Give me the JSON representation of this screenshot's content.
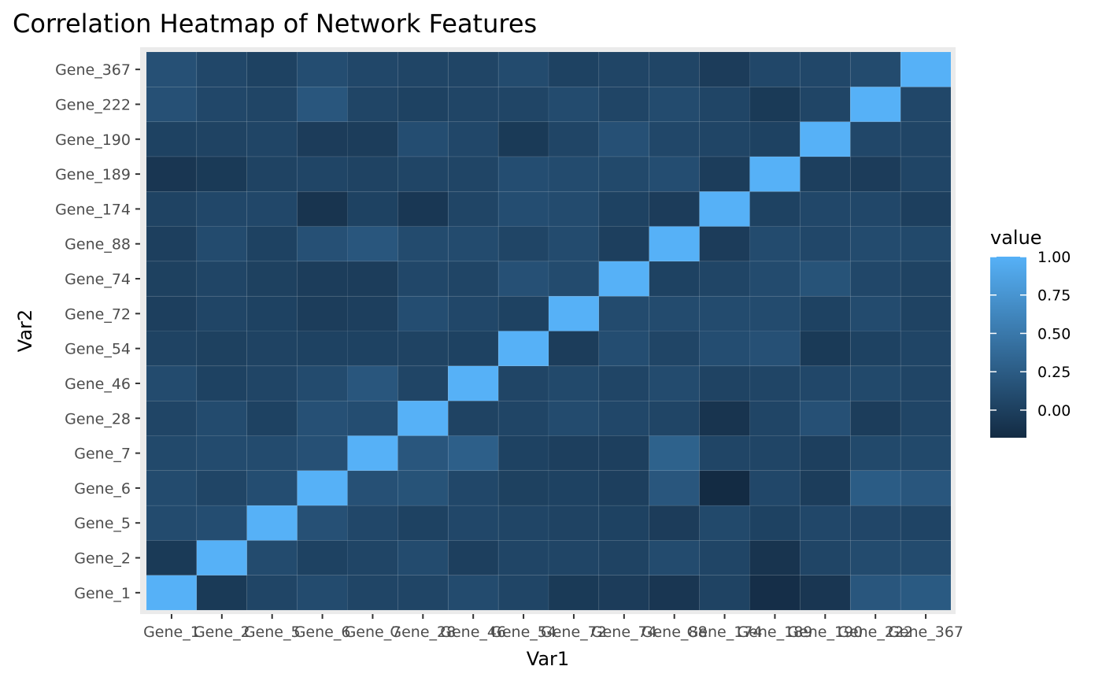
{
  "chart_data": {
    "type": "heatmap",
    "title": "Correlation Heatmap of Network Features",
    "xlabel": "Var1",
    "ylabel": "Var2",
    "x_categories": [
      "Gene_1",
      "Gene_2",
      "Gene_5",
      "Gene_6",
      "Gene_7",
      "Gene_28",
      "Gene_46",
      "Gene_54",
      "Gene_72",
      "Gene_74",
      "Gene_88",
      "Gene_174",
      "Gene_189",
      "Gene_190",
      "Gene_222",
      "Gene_367"
    ],
    "y_categories": [
      "Gene_1",
      "Gene_2",
      "Gene_5",
      "Gene_6",
      "Gene_7",
      "Gene_28",
      "Gene_46",
      "Gene_54",
      "Gene_72",
      "Gene_74",
      "Gene_88",
      "Gene_174",
      "Gene_189",
      "Gene_190",
      "Gene_222",
      "Gene_367"
    ],
    "values": [
      [
        1.0,
        -0.05,
        0.05,
        0.1,
        0.05,
        0.05,
        0.1,
        0.05,
        -0.05,
        -0.03,
        -0.08,
        0.03,
        -0.15,
        -0.08,
        0.2,
        0.23
      ],
      [
        -0.05,
        1.0,
        0.1,
        0.02,
        0.05,
        0.1,
        0.0,
        0.05,
        0.05,
        0.03,
        0.1,
        0.05,
        -0.1,
        0.05,
        0.1,
        0.1
      ],
      [
        0.1,
        0.12,
        1.0,
        0.15,
        0.07,
        0.02,
        0.07,
        0.05,
        0.03,
        0.02,
        -0.03,
        0.08,
        0.02,
        0.07,
        0.06,
        0.04
      ],
      [
        0.1,
        0.05,
        0.12,
        1.0,
        0.15,
        0.17,
        0.07,
        0.01,
        0.02,
        0.0,
        0.2,
        -0.18,
        0.07,
        -0.02,
        0.25,
        0.2
      ],
      [
        0.08,
        0.1,
        0.1,
        0.15,
        1.0,
        0.2,
        0.28,
        0.02,
        0.0,
        0.0,
        0.3,
        0.05,
        0.05,
        0.0,
        0.08,
        0.08
      ],
      [
        0.05,
        0.1,
        0.02,
        0.15,
        0.12,
        1.0,
        0.03,
        0.05,
        0.1,
        0.07,
        0.05,
        -0.1,
        0.05,
        0.15,
        -0.02,
        0.05
      ],
      [
        0.1,
        0.02,
        0.05,
        0.1,
        0.2,
        0.05,
        1.0,
        0.05,
        0.08,
        0.05,
        0.1,
        0.03,
        0.05,
        0.07,
        0.08,
        0.05
      ],
      [
        0.03,
        0.01,
        0.03,
        0.02,
        0.02,
        0.03,
        0.02,
        1.0,
        -0.02,
        0.12,
        0.05,
        0.12,
        0.15,
        -0.05,
        0.02,
        0.05
      ],
      [
        0.0,
        0.05,
        0.02,
        -0.02,
        0.0,
        0.12,
        0.07,
        0.02,
        1.0,
        0.1,
        0.1,
        0.1,
        0.1,
        0.02,
        0.1,
        0.03
      ],
      [
        0.01,
        0.05,
        0.01,
        -0.02,
        -0.02,
        0.07,
        0.05,
        0.15,
        0.1,
        1.0,
        0.02,
        0.05,
        0.1,
        0.17,
        0.07,
        0.03
      ],
      [
        0.0,
        0.1,
        0.02,
        0.15,
        0.2,
        0.1,
        0.1,
        0.05,
        0.1,
        0.0,
        1.0,
        -0.03,
        0.1,
        0.07,
        0.1,
        0.08
      ],
      [
        0.03,
        0.07,
        0.07,
        -0.1,
        0.02,
        -0.07,
        0.05,
        0.12,
        0.1,
        0.02,
        -0.03,
        1.0,
        0.02,
        0.07,
        0.07,
        0.0
      ],
      [
        -0.08,
        -0.05,
        0.03,
        0.05,
        0.03,
        0.05,
        0.05,
        0.12,
        0.1,
        0.08,
        0.12,
        -0.02,
        1.0,
        0.0,
        -0.03,
        0.05
      ],
      [
        0.02,
        0.03,
        0.05,
        -0.03,
        -0.02,
        0.12,
        0.07,
        -0.05,
        0.05,
        0.15,
        0.07,
        0.05,
        0.02,
        1.0,
        0.07,
        0.05
      ],
      [
        0.15,
        0.07,
        0.05,
        0.2,
        0.05,
        0.02,
        0.05,
        0.05,
        0.1,
        0.05,
        0.1,
        0.05,
        -0.05,
        0.05,
        1.0,
        0.07
      ],
      [
        0.15,
        0.07,
        0.02,
        0.12,
        0.07,
        0.05,
        0.05,
        0.1,
        0.02,
        0.05,
        0.05,
        -0.03,
        0.07,
        0.07,
        0.1,
        1.0
      ]
    ],
    "values_note_order": "values[row][col] where row indexes y_categories from bottom (Gene_1) to top (Gene_367) and col indexes x_categories left to right",
    "legend": {
      "title": "value",
      "breaks": [
        1.0,
        0.75,
        0.5,
        0.25,
        0.0
      ],
      "break_labels": [
        "1.00",
        "0.75",
        "0.50",
        "0.25",
        "0.00"
      ],
      "range": [
        -0.18,
        1.0
      ],
      "placement": "right",
      "color_low": "#132b43",
      "color_high": "#56b1f7"
    },
    "grid": true,
    "panel_background": "#ebebeb"
  }
}
